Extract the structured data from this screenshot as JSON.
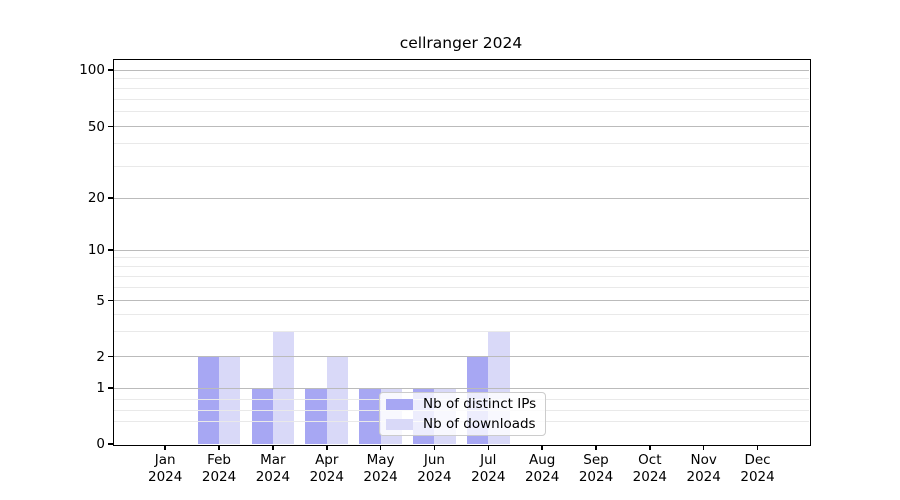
{
  "title": "cellranger 2024",
  "colors": {
    "distinct_ips": "#a7a7f3",
    "downloads": "#d9d9f8",
    "grid_major": "#bbbbbb",
    "grid_minor": "#e9e9e9",
    "axis": "#000000",
    "legend_border": "#cccccc",
    "background": "#ffffff",
    "text": "#000000"
  },
  "chart_data": {
    "type": "bar",
    "title": "cellranger 2024",
    "categories": [
      "Jan 2024",
      "Feb 2024",
      "Mar 2024",
      "Apr 2024",
      "May 2024",
      "Jun 2024",
      "Jul 2024",
      "Aug 2024",
      "Sep 2024",
      "Oct 2024",
      "Nov 2024",
      "Dec 2024"
    ],
    "month_labels": [
      "Jan",
      "Feb",
      "Mar",
      "Apr",
      "May",
      "Jun",
      "Jul",
      "Aug",
      "Sep",
      "Oct",
      "Nov",
      "Dec"
    ],
    "year_label": "2024",
    "series": [
      {
        "name": "Nb of distinct IPs",
        "values": [
          0,
          2,
          1,
          1,
          1,
          1,
          2,
          0,
          0,
          0,
          0,
          0
        ],
        "color_key": "distinct_ips"
      },
      {
        "name": "Nb of downloads",
        "values": [
          0,
          2,
          3,
          2,
          1,
          1,
          3,
          0,
          0,
          0,
          0,
          0
        ],
        "color_key": "downloads"
      }
    ],
    "xlabel": "",
    "ylabel": "",
    "yscale": "symlog",
    "ylim": [
      0,
      120
    ],
    "ytick_values": [
      0,
      1,
      2,
      5,
      10,
      20,
      50,
      100
    ],
    "yminor_values": [
      0.4,
      0.6,
      0.8,
      3,
      4,
      6,
      7,
      8,
      9,
      30,
      40,
      60,
      70,
      80,
      90
    ],
    "grid": true,
    "legend": {
      "position": "inside-bottom-center",
      "items": [
        "Nb of distinct IPs",
        "Nb of downloads"
      ]
    }
  }
}
